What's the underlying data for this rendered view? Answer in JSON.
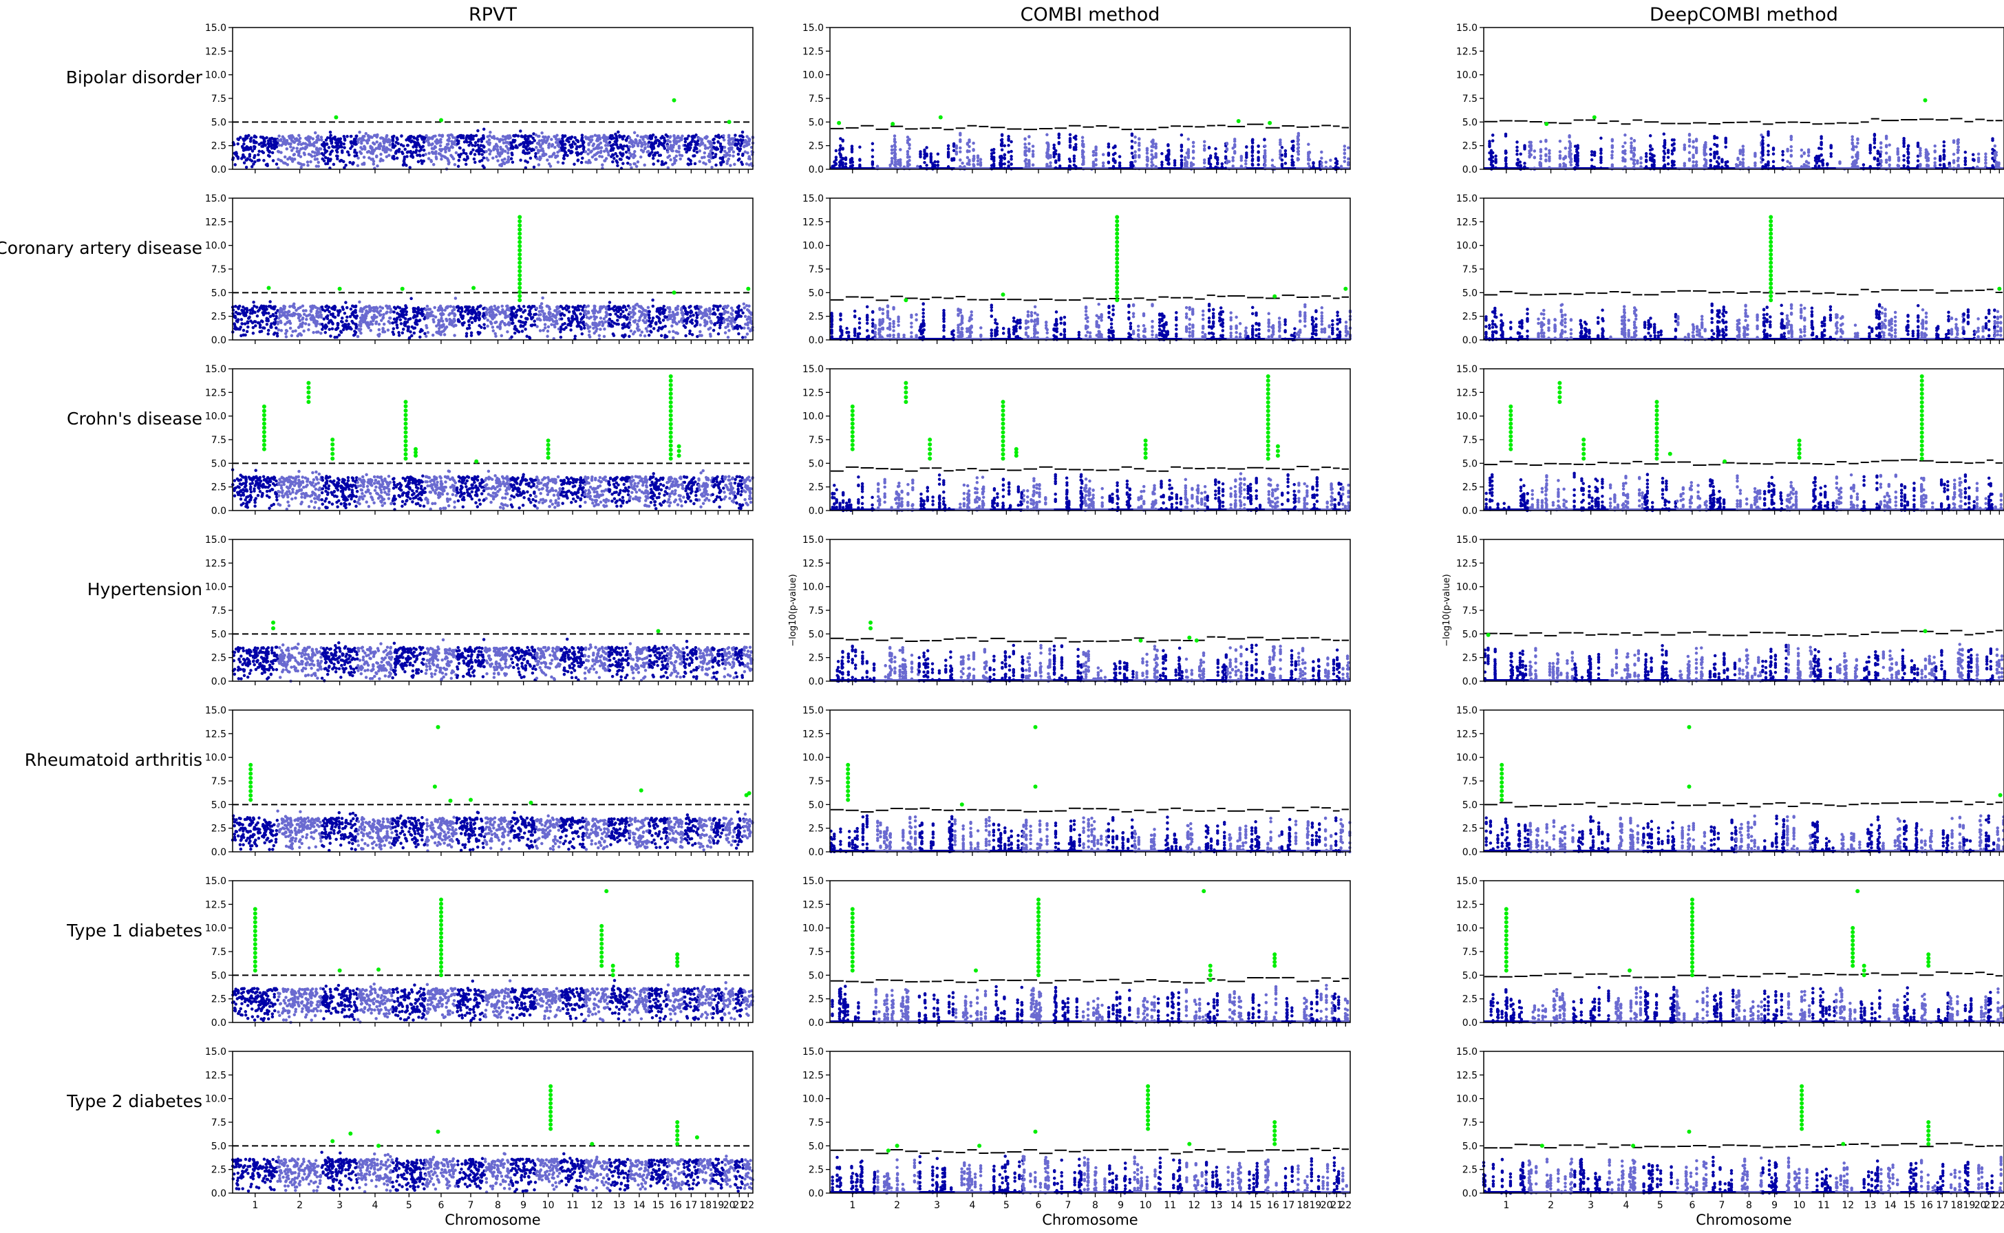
{
  "figure": {
    "column_titles": [
      "RPVT",
      "COMBI method",
      "DeepCOMBI method"
    ],
    "row_labels": [
      "Bipolar disorder",
      "Coronary artery disease",
      "Crohn's disease",
      "Hypertension",
      "Rheumatoid arthritis",
      "Type 1 diabetes",
      "Type 2 diabetes"
    ],
    "ylabel": "−log10(p-value)",
    "xlabel": "Chromosome",
    "y_ticks": [
      "0.0",
      "2.5",
      "5.0",
      "7.5",
      "10.0",
      "12.5",
      "15.0"
    ],
    "x_tick_labels": [
      "1",
      "2",
      "3",
      "4",
      "5",
      "6",
      "7",
      "8",
      "9",
      "10",
      "11",
      "12",
      "13",
      "14",
      "15",
      "16",
      "17",
      "18",
      "19",
      "20",
      "21",
      "22"
    ],
    "colors": {
      "dark": "#0000a8",
      "light": "#6a6ad0",
      "hit": "#00ee00",
      "threshold": "#000000"
    }
  },
  "chart_data": {
    "type": "scatter",
    "subtype": "manhattan",
    "ylim": [
      0,
      15
    ],
    "chromosome_relative_lengths": [
      8.3,
      8.1,
      6.6,
      6.4,
      6.1,
      5.7,
      5.2,
      4.8,
      4.6,
      4.5,
      4.5,
      4.4,
      3.8,
      3.6,
      3.4,
      3.0,
      2.7,
      2.6,
      2.0,
      2.1,
      1.6,
      1.7
    ],
    "rpvt_threshold": 5.0,
    "panels": [
      {
        "method": "RPVT",
        "disease": "Bipolar disorder",
        "hits": [
          [
            3,
            0.4,
            5.5
          ],
          [
            6,
            0.5,
            5.2
          ],
          [
            16,
            0.4,
            7.3
          ],
          [
            20,
            0.5,
            5.0
          ]
        ]
      },
      {
        "method": "COMBI method",
        "disease": "Bipolar disorder",
        "hits": [
          [
            1,
            0.2,
            4.9
          ],
          [
            2,
            0.4,
            4.8
          ],
          [
            3,
            0.6,
            5.5
          ],
          [
            14,
            0.6,
            5.1
          ],
          [
            16,
            0.3,
            4.9
          ]
        ]
      },
      {
        "method": "DeepCOMBI method",
        "disease": "Bipolar disorder",
        "hits": [
          [
            2,
            0.4,
            4.8
          ],
          [
            3,
            0.6,
            5.5
          ],
          [
            16,
            0.4,
            7.3
          ]
        ]
      },
      {
        "method": "RPVT",
        "disease": "Coronary artery disease",
        "hits": [
          [
            1,
            0.8,
            5.5
          ],
          [
            3,
            0.5,
            5.4
          ],
          [
            5,
            0.3,
            5.4
          ],
          [
            7,
            0.6,
            5.5
          ],
          [
            9,
            0.35,
            13.0,
            4.2
          ],
          [
            16,
            0.4,
            5.0
          ],
          [
            22,
            0.5,
            5.4
          ]
        ]
      },
      {
        "method": "COMBI method",
        "disease": "Coronary artery disease",
        "hits": [
          [
            2,
            0.7,
            4.2
          ],
          [
            5,
            0.4,
            4.8
          ],
          [
            9,
            0.35,
            13.0,
            4.2
          ],
          [
            16,
            0.6,
            4.6
          ],
          [
            22,
            0.5,
            5.4
          ]
        ]
      },
      {
        "method": "DeepCOMBI method",
        "disease": "Coronary artery disease",
        "hits": [
          [
            9,
            0.35,
            13.0,
            4.2
          ],
          [
            22,
            0.5,
            5.4
          ]
        ]
      },
      {
        "method": "RPVT",
        "disease": "Crohn's disease",
        "hits": [
          [
            1,
            0.7,
            11.0,
            6.5
          ],
          [
            2,
            0.7,
            13.5,
            11.5
          ],
          [
            3,
            0.3,
            7.5,
            5.5
          ],
          [
            5,
            0.4,
            11.5,
            5.5
          ],
          [
            5,
            0.7,
            6.5,
            5.8
          ],
          [
            7,
            0.7,
            5.2
          ],
          [
            10,
            0.5,
            7.4,
            5.6
          ],
          [
            16,
            0.2,
            14.2,
            5.5
          ],
          [
            16,
            0.7,
            6.8,
            5.8
          ]
        ]
      },
      {
        "method": "COMBI method",
        "disease": "Crohn's disease",
        "hits": [
          [
            1,
            0.5,
            11.0,
            6.5
          ],
          [
            2,
            0.7,
            13.5,
            11.5
          ],
          [
            3,
            0.3,
            7.5,
            5.5
          ],
          [
            5,
            0.4,
            11.5,
            5.5
          ],
          [
            5,
            0.8,
            6.5,
            5.8
          ],
          [
            10,
            0.5,
            7.4,
            5.6
          ],
          [
            16,
            0.2,
            14.2,
            5.5
          ],
          [
            16,
            0.8,
            6.8,
            5.8
          ]
        ]
      },
      {
        "method": "DeepCOMBI method",
        "disease": "Crohn's disease",
        "hits": [
          [
            1,
            0.6,
            11.0,
            6.5
          ],
          [
            2,
            0.7,
            13.5,
            11.5
          ],
          [
            3,
            0.3,
            7.5,
            5.5
          ],
          [
            5,
            0.4,
            11.5,
            5.5
          ],
          [
            5,
            0.8,
            6.0
          ],
          [
            7,
            0.6,
            5.2
          ],
          [
            10,
            0.5,
            7.4,
            5.6
          ],
          [
            16,
            0.2,
            14.2,
            5.5
          ]
        ]
      },
      {
        "method": "RPVT",
        "disease": "Hypertension",
        "hits": [
          [
            1,
            0.9,
            6.2,
            5.6
          ],
          [
            15,
            0.5,
            5.3
          ]
        ]
      },
      {
        "method": "COMBI method",
        "disease": "Hypertension",
        "hits": [
          [
            1,
            0.9,
            6.2,
            5.6
          ],
          [
            10,
            0.3,
            4.3
          ],
          [
            12,
            0.3,
            4.6
          ],
          [
            12,
            0.6,
            4.3
          ]
        ]
      },
      {
        "method": "DeepCOMBI method",
        "disease": "Hypertension",
        "hits": [
          [
            1,
            0.1,
            4.9
          ],
          [
            16,
            0.4,
            5.3
          ]
        ]
      },
      {
        "method": "RPVT",
        "disease": "Rheumatoid arthritis",
        "hits": [
          [
            1,
            0.4,
            9.2,
            5.5
          ],
          [
            6,
            0.4,
            13.2
          ],
          [
            6,
            0.3,
            6.9
          ],
          [
            6,
            0.8,
            5.4
          ],
          [
            7,
            0.5,
            5.5
          ],
          [
            9,
            0.8,
            5.2
          ],
          [
            14,
            0.6,
            6.5
          ],
          [
            22,
            0.3,
            6.0
          ],
          [
            22,
            0.6,
            6.2
          ]
        ]
      },
      {
        "method": "COMBI method",
        "disease": "Rheumatoid arthritis",
        "hits": [
          [
            1,
            0.4,
            9.2,
            5.5
          ],
          [
            4,
            0.2,
            5.0
          ],
          [
            6,
            0.4,
            13.2
          ],
          [
            6,
            0.4,
            6.9
          ]
        ]
      },
      {
        "method": "DeepCOMBI method",
        "disease": "Rheumatoid arthritis",
        "hits": [
          [
            1,
            0.4,
            9.2,
            5.5
          ],
          [
            6,
            0.4,
            13.2
          ],
          [
            6,
            0.4,
            6.9
          ],
          [
            22,
            0.6,
            6.0
          ]
        ]
      },
      {
        "method": "RPVT",
        "disease": "Type 1 diabetes",
        "hits": [
          [
            1,
            0.5,
            12.0,
            5.5
          ],
          [
            3,
            0.5,
            5.5
          ],
          [
            4,
            0.6,
            5.6
          ],
          [
            6,
            0.5,
            13.0,
            5.0
          ],
          [
            12,
            0.7,
            10.2,
            6.0
          ],
          [
            12,
            0.9,
            13.9
          ],
          [
            13,
            0.2,
            6.0,
            5.0
          ],
          [
            16,
            0.6,
            7.2,
            6.0
          ]
        ]
      },
      {
        "method": "COMBI method",
        "disease": "Type 1 diabetes",
        "hits": [
          [
            1,
            0.5,
            12.0,
            5.5
          ],
          [
            4,
            0.6,
            5.5
          ],
          [
            6,
            0.5,
            13.0,
            5.0
          ],
          [
            12,
            0.9,
            13.9
          ],
          [
            13,
            0.2,
            6.0,
            4.5
          ],
          [
            16,
            0.6,
            7.2,
            6.0
          ]
        ]
      },
      {
        "method": "DeepCOMBI method",
        "disease": "Type 1 diabetes",
        "hits": [
          [
            1,
            0.5,
            12.0,
            5.5
          ],
          [
            4,
            0.6,
            5.5
          ],
          [
            6,
            0.5,
            13.0,
            5.0
          ],
          [
            12,
            0.7,
            10.0,
            6.0
          ],
          [
            12,
            0.9,
            13.9
          ],
          [
            13,
            0.2,
            6.0,
            5.0
          ],
          [
            16,
            0.6,
            7.2,
            6.0
          ]
        ]
      },
      {
        "method": "RPVT",
        "disease": "Type 2 diabetes",
        "hits": [
          [
            3,
            0.3,
            5.5
          ],
          [
            3,
            0.8,
            6.3
          ],
          [
            4,
            0.6,
            5.0
          ],
          [
            6,
            0.4,
            6.5
          ],
          [
            10,
            0.6,
            11.3,
            6.8
          ],
          [
            12,
            0.3,
            5.2
          ],
          [
            16,
            0.6,
            7.5,
            5.2
          ],
          [
            17,
            0.9,
            5.9
          ]
        ]
      },
      {
        "method": "COMBI method",
        "disease": "Type 2 diabetes",
        "hits": [
          [
            2,
            0.3,
            4.5
          ],
          [
            2,
            0.5,
            5.0
          ],
          [
            4,
            0.7,
            5.0
          ],
          [
            6,
            0.4,
            6.5
          ],
          [
            10,
            0.6,
            11.3,
            6.8
          ],
          [
            12,
            0.3,
            5.2
          ],
          [
            16,
            0.6,
            7.5,
            5.2
          ]
        ]
      },
      {
        "method": "DeepCOMBI method",
        "disease": "Type 2 diabetes",
        "hits": [
          [
            2,
            0.3,
            5.0
          ],
          [
            4,
            0.7,
            5.0
          ],
          [
            6,
            0.4,
            6.5
          ],
          [
            10,
            0.6,
            11.3,
            6.8
          ],
          [
            12,
            0.3,
            5.2
          ],
          [
            16,
            0.6,
            7.5,
            5.2
          ]
        ]
      }
    ]
  }
}
